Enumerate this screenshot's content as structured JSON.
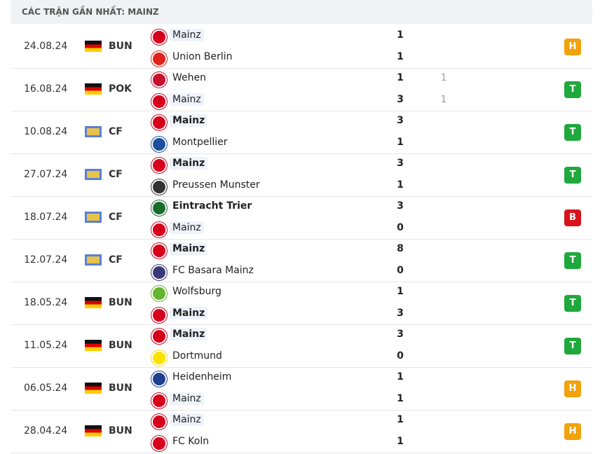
{
  "header": {
    "title": "CÁC TRẬN GẦN NHẤT: MAINZ"
  },
  "matches": [
    {
      "date": "24.08.24",
      "competition": "BUN",
      "home": {
        "name": "Mainz",
        "score": 1
      },
      "away": {
        "name": "Union Berlin",
        "score": 1
      },
      "result": "H"
    },
    {
      "date": "16.08.24",
      "competition": "POK",
      "home": {
        "name": "Wehen",
        "score": 1,
        "extra": 1
      },
      "away": {
        "name": "Mainz",
        "score": 3,
        "extra": 1
      },
      "result": "T"
    },
    {
      "date": "10.08.24",
      "competition": "CF",
      "home": {
        "name": "Mainz",
        "score": 3,
        "bold": true
      },
      "away": {
        "name": "Montpellier",
        "score": 1
      },
      "result": "T"
    },
    {
      "date": "27.07.24",
      "competition": "CF",
      "home": {
        "name": "Mainz",
        "score": 3,
        "bold": true
      },
      "away": {
        "name": "Preussen Munster",
        "score": 1
      },
      "result": "T"
    },
    {
      "date": "18.07.24",
      "competition": "CF",
      "home": {
        "name": "Eintracht Trier",
        "score": 3,
        "bold": true
      },
      "away": {
        "name": "Mainz",
        "score": 0
      },
      "result": "B"
    },
    {
      "date": "12.07.24",
      "competition": "CF",
      "home": {
        "name": "Mainz",
        "score": 8,
        "bold": true
      },
      "away": {
        "name": "FC Basara Mainz",
        "score": 0
      },
      "result": "T"
    },
    {
      "date": "18.05.24",
      "competition": "BUN",
      "home": {
        "name": "Wolfsburg",
        "score": 1
      },
      "away": {
        "name": "Mainz",
        "score": 3,
        "bold": true
      },
      "result": "T"
    },
    {
      "date": "11.05.24",
      "competition": "BUN",
      "home": {
        "name": "Mainz",
        "score": 3,
        "bold": true
      },
      "away": {
        "name": "Dortmund",
        "score": 0
      },
      "result": "T"
    },
    {
      "date": "06.05.24",
      "competition": "BUN",
      "home": {
        "name": "Heidenheim",
        "score": 1
      },
      "away": {
        "name": "Mainz",
        "score": 1
      },
      "result": "H"
    },
    {
      "date": "28.04.24",
      "competition": "BUN",
      "home": {
        "name": "Mainz",
        "score": 1
      },
      "away": {
        "name": "FC Koln",
        "score": 1
      },
      "result": "H"
    }
  ]
}
